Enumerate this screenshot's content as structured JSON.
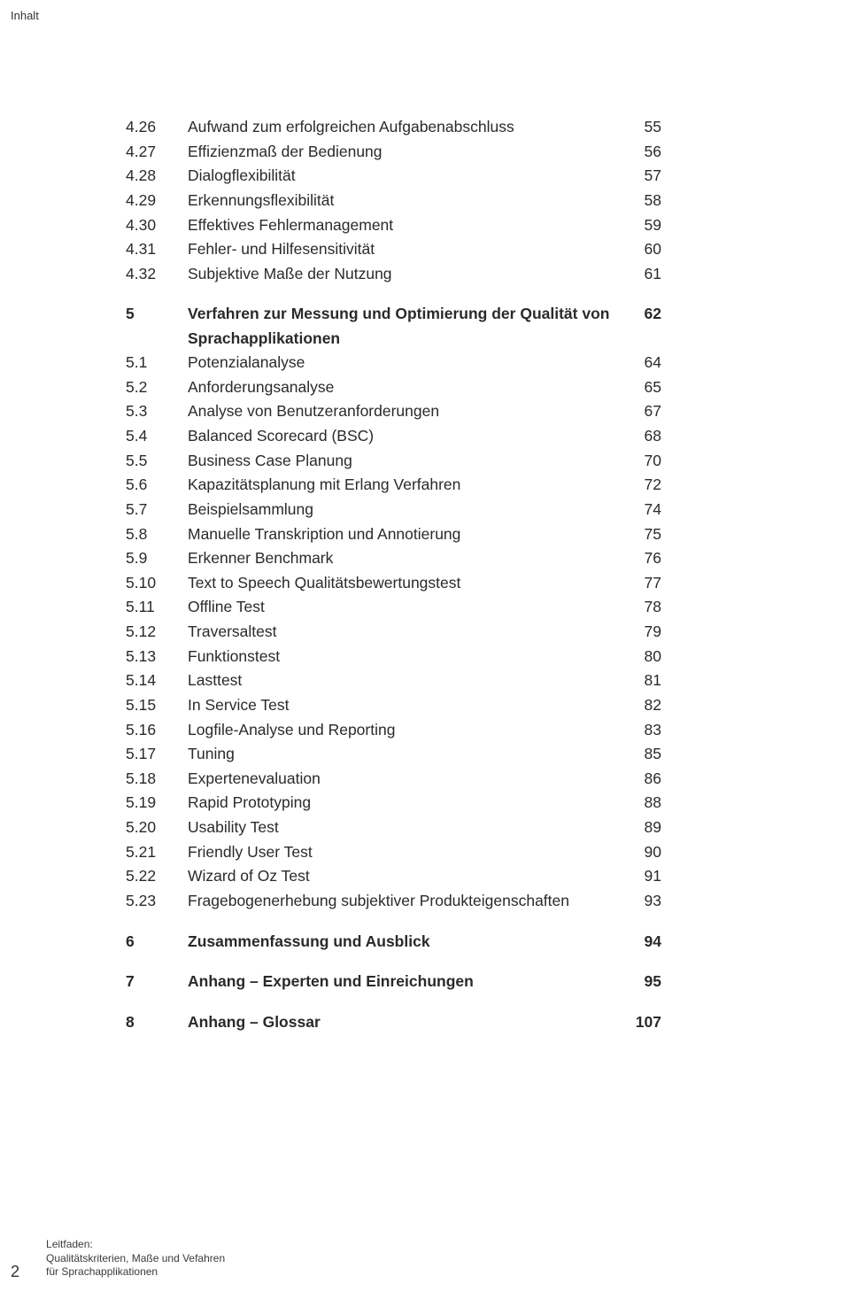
{
  "header_label": "Inhalt",
  "rows": [
    {
      "num": "4.26",
      "title": "Aufwand zum erfolgreichen Aufgabenabschluss",
      "page": "55",
      "bold": false
    },
    {
      "num": "4.27",
      "title": "Effizienzmaß der Bedienung",
      "page": "56",
      "bold": false
    },
    {
      "num": "4.28",
      "title": "Dialogflexibilität",
      "page": "57",
      "bold": false
    },
    {
      "num": "4.29",
      "title": "Erkennungsflexibilität",
      "page": "58",
      "bold": false
    },
    {
      "num": "4.30",
      "title": "Effektives Fehlermanagement",
      "page": "59",
      "bold": false
    },
    {
      "num": "4.31",
      "title": "Fehler- und Hilfesensitivität",
      "page": "60",
      "bold": false
    },
    {
      "num": "4.32",
      "title": "Subjektive Maße der Nutzung",
      "page": "61",
      "bold": false
    },
    {
      "gap": true
    },
    {
      "num": "5",
      "title": "Verfahren zur Messung und Optimierung der Qualität von Sprachapplikationen",
      "page": "62",
      "bold": true
    },
    {
      "num": "5.1",
      "title": "Potenzialanalyse",
      "page": "64",
      "bold": false
    },
    {
      "num": "5.2",
      "title": "Anforderungsanalyse",
      "page": "65",
      "bold": false
    },
    {
      "num": "5.3",
      "title": "Analyse von Benutzeranforderungen",
      "page": "67",
      "bold": false
    },
    {
      "num": "5.4",
      "title": "Balanced Scorecard (BSC)",
      "page": "68",
      "bold": false
    },
    {
      "num": "5.5",
      "title": "Business Case Planung",
      "page": "70",
      "bold": false
    },
    {
      "num": "5.6",
      "title": "Kapazitätsplanung mit Erlang Verfahren",
      "page": "72",
      "bold": false
    },
    {
      "num": "5.7",
      "title": "Beispielsammlung",
      "page": "74",
      "bold": false
    },
    {
      "num": "5.8",
      "title": "Manuelle Transkription und Annotierung",
      "page": "75",
      "bold": false
    },
    {
      "num": "5.9",
      "title": "Erkenner Benchmark",
      "page": "76",
      "bold": false
    },
    {
      "num": "5.10",
      "title": "Text to Speech Qualitätsbewertungstest",
      "page": "77",
      "bold": false
    },
    {
      "num": "5.11",
      "title": "Offline Test",
      "page": "78",
      "bold": false
    },
    {
      "num": "5.12",
      "title": "Traversaltest",
      "page": "79",
      "bold": false
    },
    {
      "num": "5.13",
      "title": "Funktionstest",
      "page": "80",
      "bold": false
    },
    {
      "num": "5.14",
      "title": "Lasttest",
      "page": "81",
      "bold": false
    },
    {
      "num": "5.15",
      "title": "In Service Test",
      "page": "82",
      "bold": false
    },
    {
      "num": "5.16",
      "title": "Logfile-Analyse und Reporting",
      "page": "83",
      "bold": false
    },
    {
      "num": "5.17",
      "title": "Tuning",
      "page": "85",
      "bold": false
    },
    {
      "num": "5.18",
      "title": "Expertenevaluation",
      "page": "86",
      "bold": false
    },
    {
      "num": "5.19",
      "title": "Rapid Prototyping",
      "page": "88",
      "bold": false
    },
    {
      "num": "5.20",
      "title": "Usability Test",
      "page": "89",
      "bold": false
    },
    {
      "num": "5.21",
      "title": "Friendly User Test",
      "page": "90",
      "bold": false
    },
    {
      "num": "5.22",
      "title": "Wizard of Oz Test",
      "page": "91",
      "bold": false
    },
    {
      "num": "5.23",
      "title": "Fragebogenerhebung subjektiver Produkteigenschaften",
      "page": "93",
      "bold": false
    },
    {
      "gap": true
    },
    {
      "num": "6",
      "title": "Zusammenfassung und Ausblick",
      "page": "94",
      "bold": true
    },
    {
      "gap": true
    },
    {
      "num": "7",
      "title": "Anhang – Experten und Einreichungen",
      "page": "95",
      "bold": true
    },
    {
      "gap": true
    },
    {
      "num": "8",
      "title": "Anhang – Glossar",
      "page": "107",
      "bold": true
    }
  ],
  "footer": {
    "page_number": "2",
    "line1": "Leitfaden:",
    "line2": "Qualitätskriterien, Maße und Vefahren",
    "line3": "für Sprachapplikationen"
  },
  "style": {
    "text_color": "#2a2a2a",
    "background": "#ffffff",
    "font_size_body": 17.5,
    "font_size_header": 13,
    "font_size_footer": 12
  }
}
